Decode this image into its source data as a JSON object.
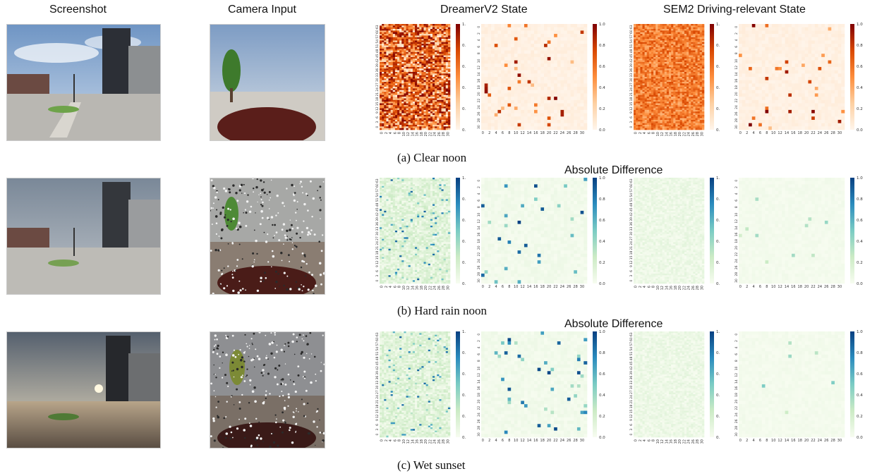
{
  "headers": {
    "screenshot": "Screenshot",
    "camera": "Camera Input",
    "dreamer": "DreamerV2 State",
    "sem2": "SEM2 Driving-relevant  State"
  },
  "rows": [
    {
      "caption": "(a) Clear noon",
      "diff_label": ""
    },
    {
      "caption": "(b) Hard rain noon",
      "diff_label": "Absolute Difference"
    },
    {
      "caption": "(c) Wet sunset",
      "diff_label": "Absolute Difference"
    }
  ],
  "colorbar_ticks": [
    "0.0",
    "0.2",
    "0.4",
    "0.6",
    "0.8",
    "1.0"
  ],
  "colormaps": {
    "state": [
      "#fff5eb",
      "#fdd0a2",
      "#fd8d3c",
      "#d94801",
      "#7f0000"
    ],
    "diff": [
      "#f7fcf0",
      "#ccebc5",
      "#7bccc4",
      "#2b8cbe",
      "#084081"
    ]
  },
  "chart_data": [
    {
      "type": "heatmap",
      "row": "Clear noon",
      "panel": "DreamerV2 State (64-dim)",
      "colormap": "OrRd",
      "vlim": [
        0,
        1
      ],
      "yticks": [
        "63",
        "60",
        "57",
        "54",
        "51",
        "48",
        "45",
        "42",
        "39",
        "36",
        "33",
        "30",
        "27",
        "24",
        "21",
        "18",
        "15",
        "12",
        "9",
        "6",
        "3",
        "0"
      ],
      "xticks": [
        "0",
        "2",
        "4",
        "6",
        "8",
        "10",
        "12",
        "14",
        "16",
        "18",
        "20",
        "22",
        "24",
        "26",
        "28",
        "30"
      ],
      "density": "dense"
    },
    {
      "type": "heatmap",
      "row": "Clear noon",
      "panel": "DreamerV2 State (32x32)",
      "colormap": "OrRd",
      "vlim": [
        0,
        1
      ],
      "yticks": [
        "0",
        "2",
        "4",
        "6",
        "8",
        "10",
        "12",
        "14",
        "16",
        "18",
        "20",
        "22",
        "24",
        "26",
        "28",
        "30"
      ],
      "xticks": [
        "0",
        "2",
        "4",
        "6",
        "8",
        "10",
        "12",
        "14",
        "16",
        "18",
        "20",
        "22",
        "24",
        "26",
        "28",
        "30"
      ],
      "density": "sparse"
    },
    {
      "type": "heatmap",
      "row": "Clear noon",
      "panel": "SEM2 State (64-dim)",
      "colormap": "OrRd",
      "vlim": [
        0,
        1
      ],
      "density": "dense-uniform"
    },
    {
      "type": "heatmap",
      "row": "Clear noon",
      "panel": "SEM2 State (32x32)",
      "colormap": "OrRd",
      "vlim": [
        0,
        1
      ],
      "density": "sparse"
    },
    {
      "type": "heatmap",
      "row": "Hard rain noon",
      "panel": "DreamerV2 Absolute Difference (64-dim)",
      "colormap": "GnBu",
      "vlim": [
        0,
        1
      ],
      "density": "light"
    },
    {
      "type": "heatmap",
      "row": "Hard rain noon",
      "panel": "DreamerV2 Absolute Difference (32x32)",
      "colormap": "GnBu",
      "vlim": [
        0,
        1
      ],
      "density": "sparse"
    },
    {
      "type": "heatmap",
      "row": "Hard rain noon",
      "panel": "SEM2 Absolute Difference (64-dim)",
      "colormap": "GnBu",
      "vlim": [
        0,
        1
      ],
      "density": "very-light"
    },
    {
      "type": "heatmap",
      "row": "Hard rain noon",
      "panel": "SEM2 Absolute Difference (32x32)",
      "colormap": "GnBu",
      "vlim": [
        0,
        1
      ],
      "density": "very-sparse"
    },
    {
      "type": "heatmap",
      "row": "Wet sunset",
      "panel": "DreamerV2 Absolute Difference (64-dim)",
      "colormap": "GnBu",
      "vlim": [
        0,
        1
      ],
      "density": "light"
    },
    {
      "type": "heatmap",
      "row": "Wet sunset",
      "panel": "DreamerV2 Absolute Difference (32x32)",
      "colormap": "GnBu",
      "vlim": [
        0,
        1
      ],
      "density": "sparse"
    },
    {
      "type": "heatmap",
      "row": "Wet sunset",
      "panel": "SEM2 Absolute Difference (64-dim)",
      "colormap": "GnBu",
      "vlim": [
        0,
        1
      ],
      "density": "very-light"
    },
    {
      "type": "heatmap",
      "row": "Wet sunset",
      "panel": "SEM2 Absolute Difference (32x32)",
      "colormap": "GnBu",
      "vlim": [
        0,
        1
      ],
      "density": "very-sparse"
    }
  ]
}
